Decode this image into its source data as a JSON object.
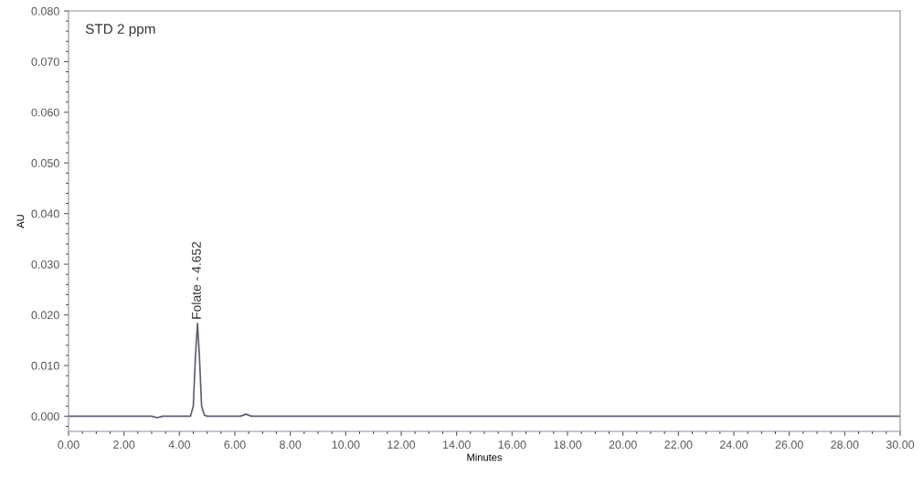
{
  "chart_data": {
    "type": "line",
    "xlabel": "Minutes",
    "ylabel": "AU",
    "x": [
      0,
      3.0,
      3.2,
      3.4,
      4.4,
      4.5,
      4.58,
      4.652,
      4.72,
      4.8,
      4.9,
      5.0,
      6.2,
      6.4,
      6.6,
      30
    ],
    "series": [
      {
        "color": "#5a6070",
        "values": [
          0,
          0,
          -0.0003,
          0,
          0,
          0.002,
          0.012,
          0.0183,
          0.012,
          0.002,
          0.0002,
          0,
          0,
          0.0004,
          0,
          0
        ]
      }
    ],
    "annotations": [
      "STD 2 ppm",
      {
        "text": "Folate - 4.652",
        "x": 4.652,
        "y": 0.0183
      }
    ],
    "xlim": [
      0,
      30
    ],
    "xticks": [
      {
        "value": 0,
        "label": "0.00"
      },
      {
        "value": 2,
        "label": "2.00"
      },
      {
        "value": 4,
        "label": "4.00"
      },
      {
        "value": 6,
        "label": "6.00"
      },
      {
        "value": 8,
        "label": "8.00"
      },
      {
        "value": 10,
        "label": "10.00"
      },
      {
        "value": 12,
        "label": "12.00"
      },
      {
        "value": 14,
        "label": "14.00"
      },
      {
        "value": 16,
        "label": "16.00"
      },
      {
        "value": 18,
        "label": "18.00"
      },
      {
        "value": 20,
        "label": "20.00"
      },
      {
        "value": 22,
        "label": "22.00"
      },
      {
        "value": 24,
        "label": "24.00"
      },
      {
        "value": 26,
        "label": "26.00"
      },
      {
        "value": 28,
        "label": "28.00"
      },
      {
        "value": 30,
        "label": "30.00"
      }
    ],
    "ylim": [
      -0.003,
      0.08
    ],
    "yticks": [
      {
        "value": 0,
        "label": "0.000"
      },
      {
        "value": 0.01,
        "label": "0.010"
      },
      {
        "value": 0.02,
        "label": "0.020"
      },
      {
        "value": 0.03,
        "label": "0.030"
      },
      {
        "value": 0.04,
        "label": "0.040"
      },
      {
        "value": 0.05,
        "label": "0.050"
      },
      {
        "value": 0.06,
        "label": "0.060"
      },
      {
        "value": 0.07,
        "label": "0.070"
      },
      {
        "value": 0.08,
        "label": "0.080"
      }
    ],
    "grid": false,
    "legend": false,
    "marker": "none",
    "line_style": "solid"
  }
}
